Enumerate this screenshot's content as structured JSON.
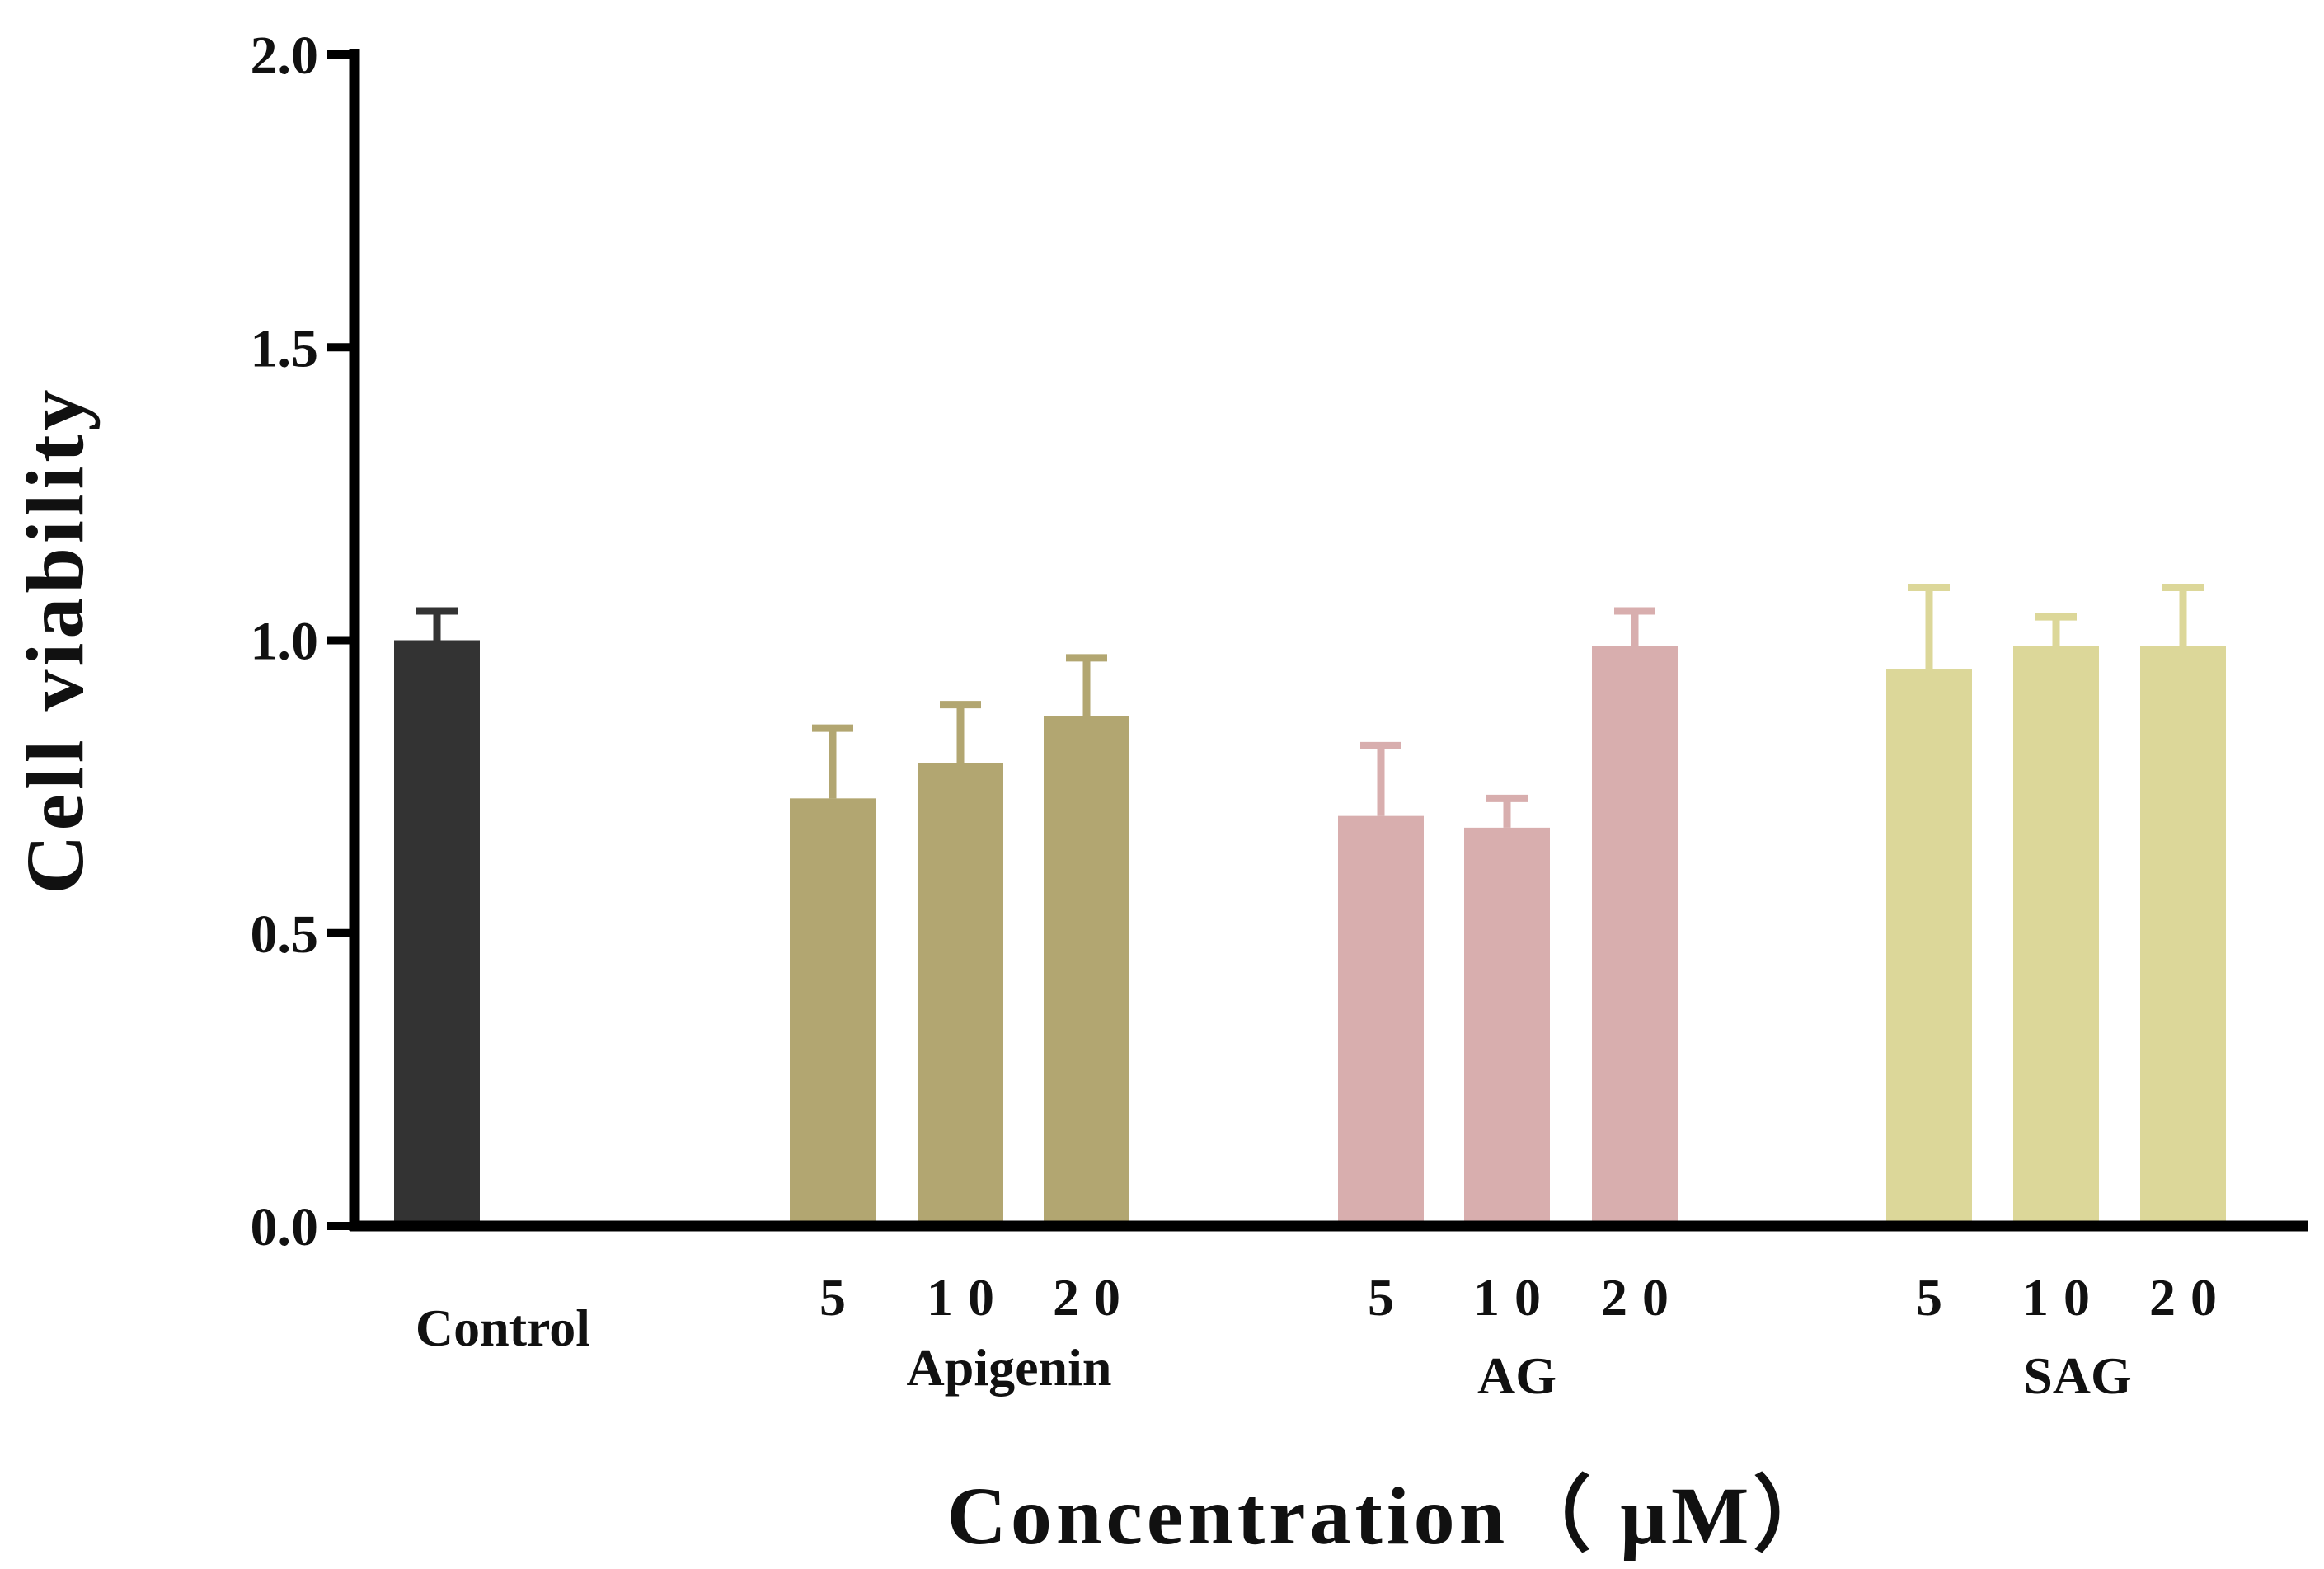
{
  "chart_data": {
    "type": "bar",
    "title": "",
    "xlabel": "Concentration（ μM）",
    "ylabel": "Cell viability",
    "ylim": [
      0,
      2.0
    ],
    "yticks": [
      "0.0",
      "0.5",
      "1.0",
      "1.5",
      "2.0"
    ],
    "grid": false,
    "legend": "none",
    "groups": [
      {
        "name": "Control",
        "color": "#333333",
        "bars": [
          {
            "label": "Control",
            "value": 1.0,
            "error": 0.05
          }
        ]
      },
      {
        "name": "Apigenin",
        "color": "#b2a671",
        "bars": [
          {
            "label": "5",
            "value": 0.73,
            "error": 0.12
          },
          {
            "label": "10",
            "value": 0.79,
            "error": 0.1
          },
          {
            "label": "20",
            "value": 0.87,
            "error": 0.1
          }
        ]
      },
      {
        "name": "AG",
        "color": "#d8aeae",
        "bars": [
          {
            "label": "5",
            "value": 0.7,
            "error": 0.12
          },
          {
            "label": "10",
            "value": 0.68,
            "error": 0.05
          },
          {
            "label": "20",
            "value": 0.99,
            "error": 0.06
          }
        ]
      },
      {
        "name": "SAG",
        "color": "#dcd799",
        "bars": [
          {
            "label": "5",
            "value": 0.95,
            "error": 0.14
          },
          {
            "label": "10",
            "value": 0.99,
            "error": 0.05
          },
          {
            "label": "20",
            "value": 0.99,
            "error": 0.1
          }
        ]
      }
    ]
  }
}
